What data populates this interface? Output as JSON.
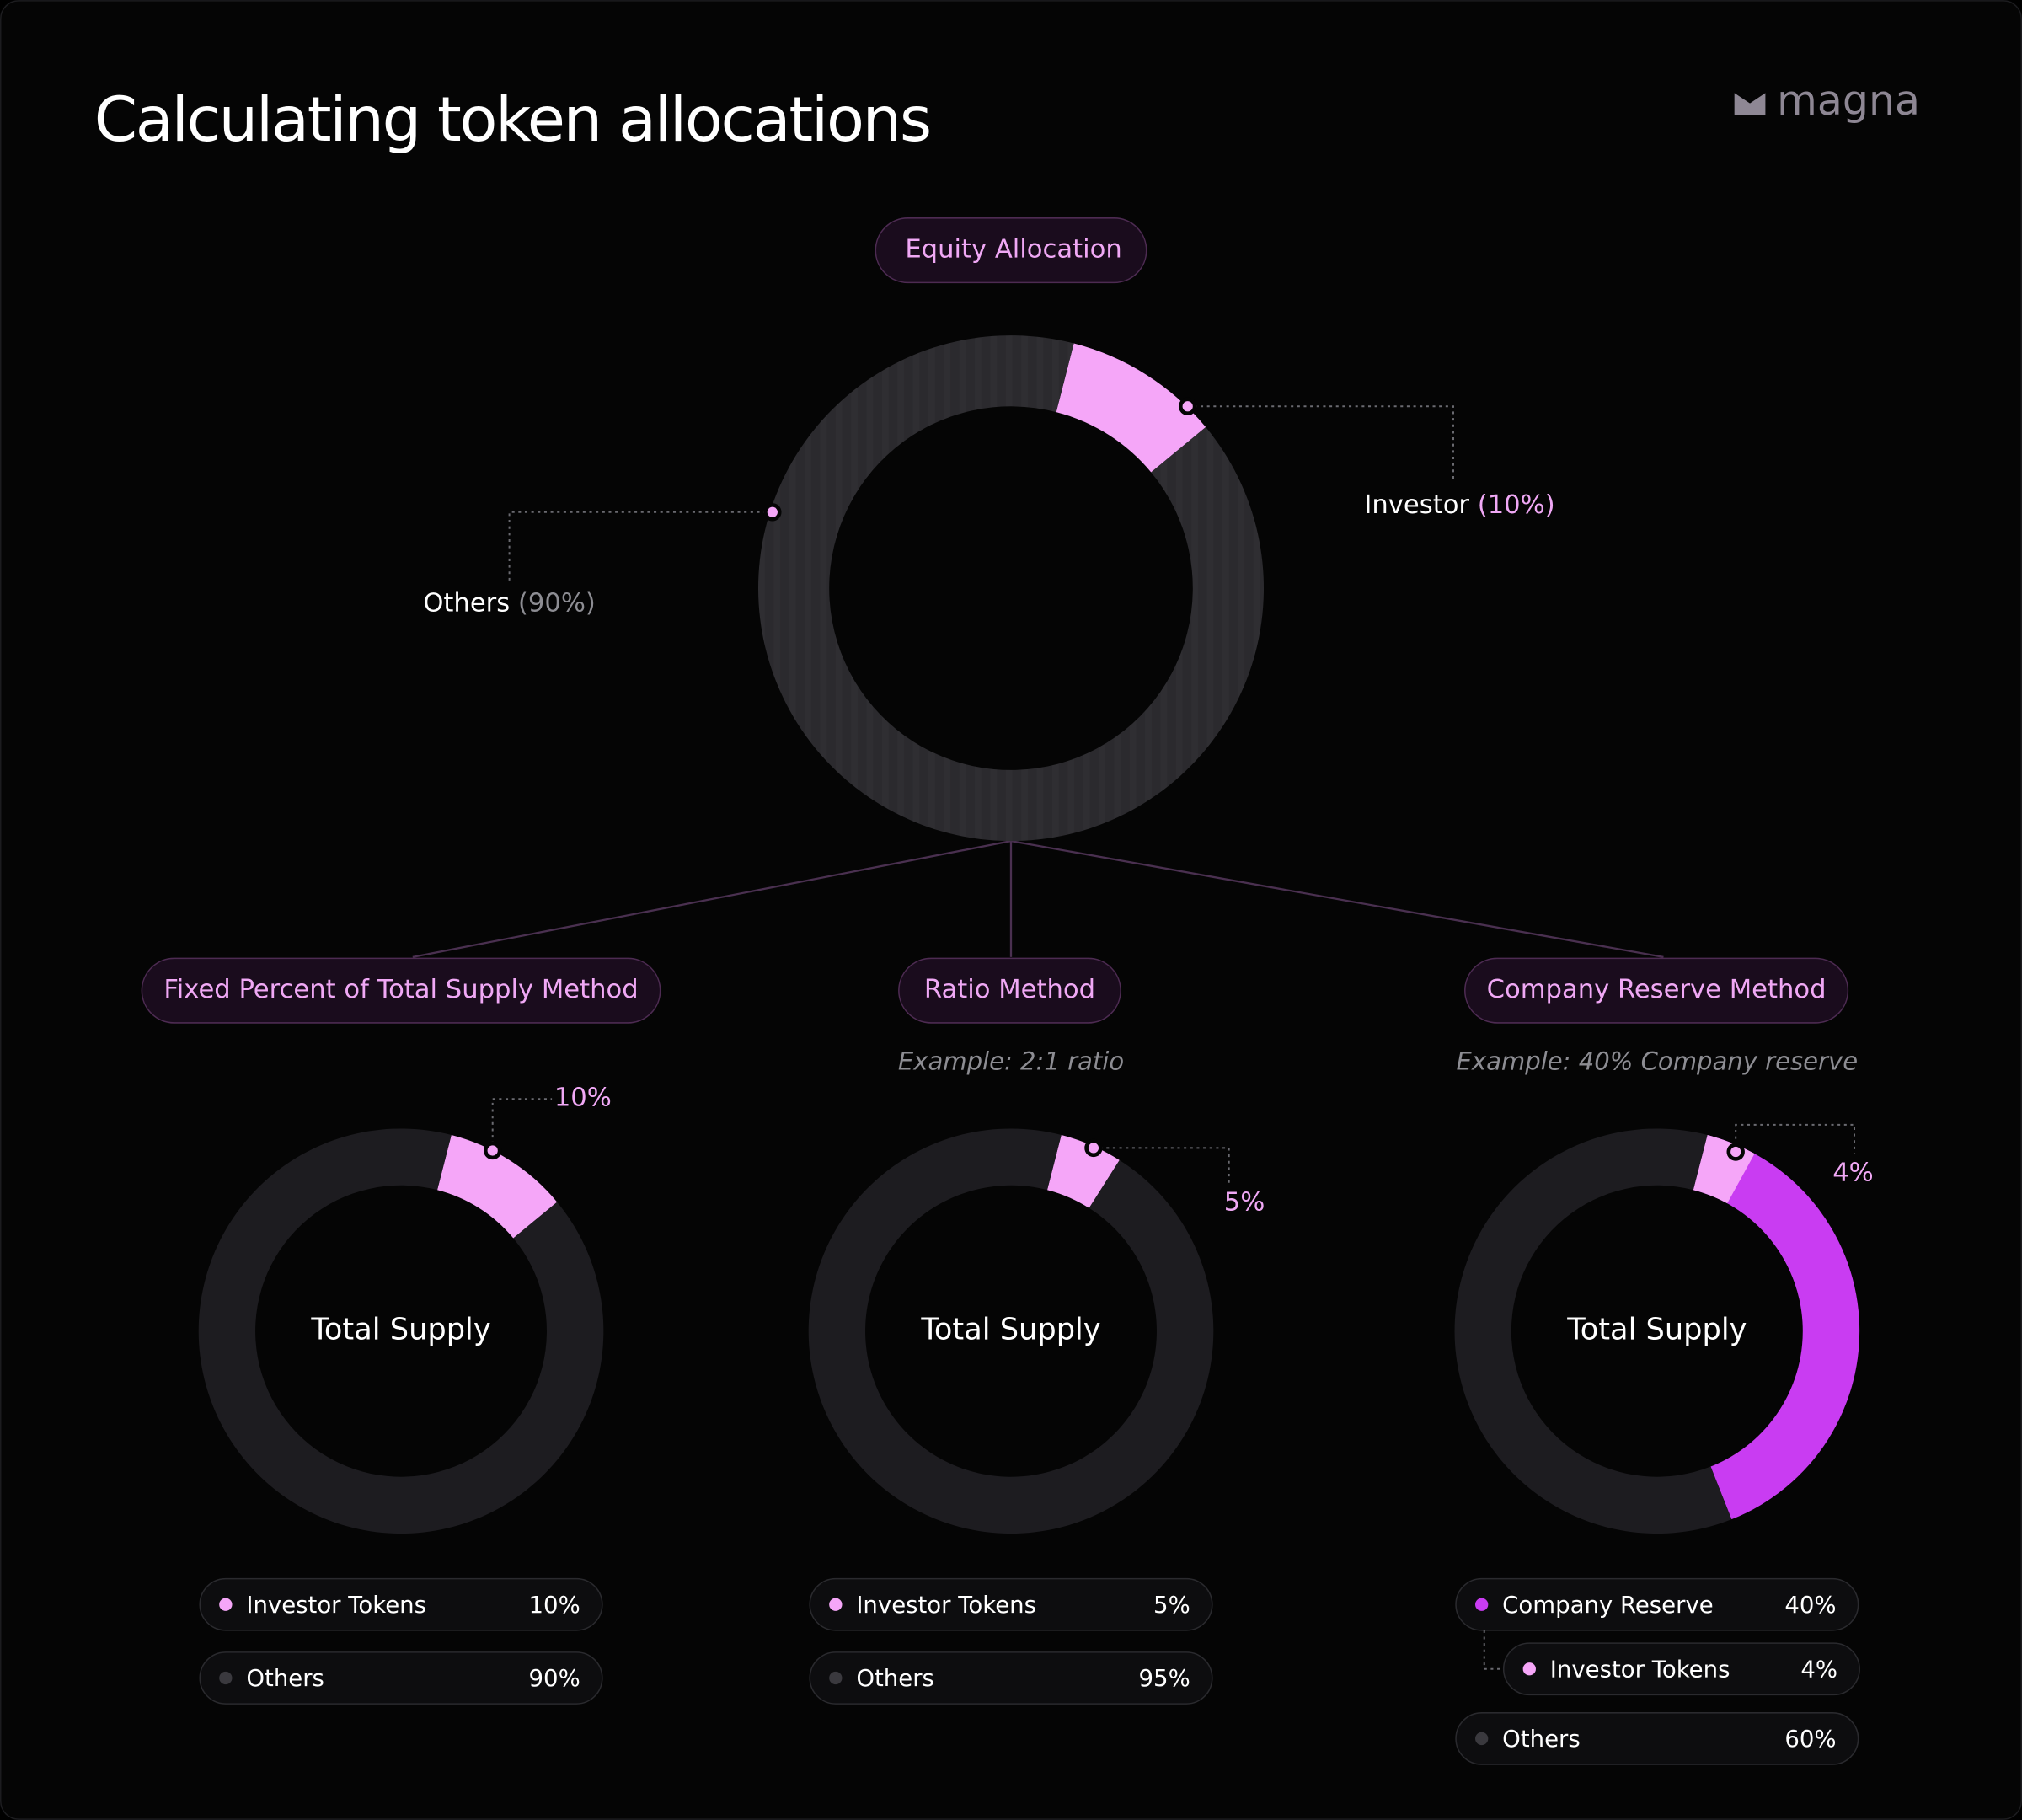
{
  "header": {
    "title": "Calculating token allocations",
    "brand": "magna"
  },
  "equity": {
    "label": "Equity Allocation",
    "slices": [
      {
        "name": "Investor",
        "value": 10,
        "label": "(10%)",
        "color": "#f5a6f8"
      },
      {
        "name": "Others",
        "value": 90,
        "label": "(90%)",
        "color": "#2b2a2e"
      }
    ]
  },
  "methods": [
    {
      "label": "Fixed Percent of Total Supply Method",
      "center": "Total Supply",
      "legend": [
        {
          "name": "Investor Tokens",
          "value": 10,
          "label": "10%",
          "color": "#f5a6f8"
        },
        {
          "name": "Others",
          "value": 90,
          "label": "90%",
          "color": "#1d1c20"
        }
      ]
    },
    {
      "label": "Ratio Method",
      "example": "Example: 2:1 ratio",
      "center": "Total Supply",
      "legend": [
        {
          "name": "Investor Tokens",
          "value": 5,
          "label": "5%",
          "color": "#f5a6f8"
        },
        {
          "name": "Others",
          "value": 95,
          "label": "95%",
          "color": "#1d1c20"
        }
      ]
    },
    {
      "label": "Company Reserve Method",
      "example": "Example:  40% Company reserve",
      "center": "Total Supply",
      "legend": [
        {
          "name": "Company Reserve",
          "value": 40,
          "label": "40%",
          "color": "#c93cf2",
          "children": [
            {
              "name": "Investor Tokens",
              "value": 4,
              "label": "4%",
              "color": "#f5a6f8"
            }
          ]
        },
        {
          "name": "Others",
          "value": 60,
          "label": "60%",
          "color": "#1d1c20"
        }
      ]
    }
  ]
}
